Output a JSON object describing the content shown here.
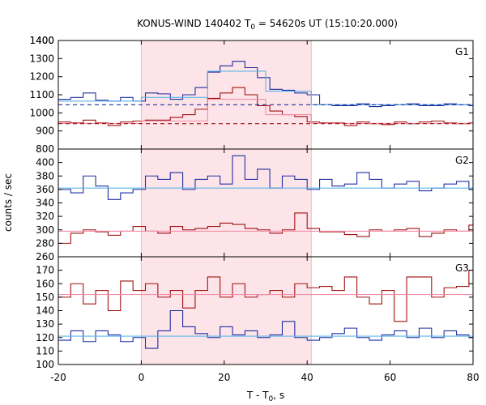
{
  "chart_data": {
    "type": "line",
    "title": "KONUS-WIND 140402 T",
    "title_sub": "0",
    "title_rest": " = 54620s UT (15:10:20.000)",
    "xlabel": "T - T",
    "xlabel_sub": "0",
    "xlabel_rest": ", s",
    "ylabel": "counts / sec",
    "xlim": [
      -20,
      80
    ],
    "x_ticks": [
      -20,
      0,
      20,
      40,
      60,
      80
    ],
    "highlight_interval": [
      0,
      41
    ],
    "colors": {
      "blue": "#1f2fa0",
      "red": "#a01010",
      "cyan_fit": "#5ab4e6",
      "pink_fit": "#f28ca8",
      "highlight": "#fde4e8"
    },
    "panels": [
      {
        "label": "G1",
        "ylim": [
          800,
          1400
        ],
        "yticks": [
          800,
          900,
          1000,
          1100,
          1200,
          1300,
          1400
        ],
        "series": [
          {
            "color": "blue",
            "x": [
              -20,
              -17,
              -14,
              -11,
              -8,
              -5,
              -2,
              1,
              4,
              7,
              10,
              13,
              16,
              19,
              22,
              25,
              28,
              31,
              34,
              37,
              40,
              43,
              46,
              49,
              52,
              55,
              58,
              61,
              64,
              67,
              70,
              73,
              76,
              79,
              80
            ],
            "y": [
              1075,
              1085,
              1110,
              1070,
              1065,
              1085,
              1065,
              1110,
              1105,
              1075,
              1100,
              1140,
              1225,
              1260,
              1285,
              1250,
              1195,
              1130,
              1125,
              1110,
              1100,
              1045,
              1040,
              1040,
              1050,
              1035,
              1040,
              1045,
              1050,
              1040,
              1040,
              1050,
              1045,
              1040,
              1040
            ]
          },
          {
            "color": "red",
            "x": [
              -20,
              -17,
              -14,
              -11,
              -8,
              -5,
              -2,
              1,
              4,
              7,
              10,
              13,
              16,
              19,
              22,
              25,
              28,
              31,
              34,
              37,
              40,
              43,
              46,
              49,
              52,
              55,
              58,
              61,
              64,
              67,
              70,
              73,
              76,
              79,
              80
            ],
            "y": [
              950,
              945,
              960,
              945,
              930,
              950,
              955,
              960,
              960,
              975,
              990,
              1020,
              1080,
              1110,
              1140,
              1100,
              1040,
              1010,
              990,
              980,
              950,
              945,
              945,
              930,
              950,
              940,
              935,
              950,
              940,
              950,
              955,
              945,
              940,
              945,
              945
            ]
          },
          {
            "color": "cyan_fit",
            "x": [
              -20,
              0,
              0,
              16,
              16,
              30,
              30,
              41,
              41,
              80
            ],
            "y": [
              1065,
              1065,
              1085,
              1085,
              1230,
              1230,
              1120,
              1120,
              1045,
              1045
            ]
          },
          {
            "color": "pink_fit",
            "x": [
              -20,
              0,
              0,
              16,
              16,
              30,
              30,
              41,
              41,
              80
            ],
            "y": [
              942,
              942,
              955,
              955,
              1075,
              1075,
              990,
              990,
              942,
              942
            ]
          },
          {
            "color": "blue",
            "dashed": true,
            "x": [
              -20,
              80
            ],
            "y": [
              1045,
              1045
            ]
          },
          {
            "color": "red",
            "dashed": true,
            "x": [
              -20,
              80
            ],
            "y": [
              940,
              940
            ]
          }
        ]
      },
      {
        "label": "G2",
        "ylim": [
          260,
          420
        ],
        "yticks": [
          260,
          280,
          300,
          320,
          340,
          360,
          380,
          400
        ],
        "series": [
          {
            "color": "blue",
            "x": [
              -20,
              -17,
              -14,
              -11,
              -8,
              -5,
              -2,
              1,
              4,
              7,
              10,
              13,
              16,
              19,
              22,
              25,
              28,
              31,
              34,
              37,
              40,
              43,
              46,
              49,
              52,
              55,
              58,
              61,
              64,
              67,
              70,
              73,
              76,
              79,
              80
            ],
            "y": [
              360,
              355,
              380,
              365,
              345,
              355,
              360,
              380,
              375,
              385,
              360,
              375,
              380,
              368,
              410,
              375,
              390,
              362,
              380,
              375,
              360,
              375,
              365,
              368,
              385,
              375,
              362,
              368,
              372,
              358,
              362,
              368,
              372,
              360,
              360
            ]
          },
          {
            "color": "red",
            "x": [
              -20,
              -17,
              -14,
              -11,
              -8,
              -5,
              -2,
              1,
              4,
              7,
              10,
              13,
              16,
              19,
              22,
              25,
              28,
              31,
              34,
              37,
              40,
              43,
              46,
              49,
              52,
              55,
              58,
              61,
              64,
              67,
              70,
              73,
              76,
              79,
              80
            ],
            "y": [
              280,
              295,
              300,
              297,
              292,
              298,
              305,
              298,
              295,
              305,
              300,
              302,
              305,
              310,
              308,
              302,
              300,
              295,
              300,
              325,
              302,
              297,
              297,
              293,
              290,
              300,
              298,
              300,
              302,
              290,
              295,
              300,
              298,
              307,
              307
            ]
          },
          {
            "color": "cyan_fit",
            "x": [
              -20,
              80
            ],
            "y": [
              362,
              362
            ]
          },
          {
            "color": "pink_fit",
            "x": [
              -20,
              80
            ],
            "y": [
              298,
              298
            ]
          }
        ]
      },
      {
        "label": "G3",
        "ylim": [
          100,
          180
        ],
        "yticks": [
          100,
          110,
          120,
          130,
          140,
          150,
          160,
          170
        ],
        "series": [
          {
            "color": "blue",
            "x": [
              -20,
              -17,
              -14,
              -11,
              -8,
              -5,
              -2,
              1,
              4,
              7,
              10,
              13,
              16,
              19,
              22,
              25,
              28,
              31,
              34,
              37,
              40,
              43,
              46,
              49,
              52,
              55,
              58,
              61,
              64,
              67,
              70,
              73,
              76,
              79,
              80
            ],
            "y": [
              118,
              125,
              117,
              125,
              122,
              117,
              120,
              112,
              125,
              140,
              128,
              123,
              120,
              128,
              122,
              125,
              120,
              122,
              132,
              120,
              118,
              120,
              123,
              127,
              120,
              118,
              122,
              125,
              120,
              127,
              120,
              125,
              122,
              120,
              120
            ]
          },
          {
            "color": "red",
            "x": [
              -20,
              -17,
              -14,
              -11,
              -8,
              -5,
              -2,
              1,
              4,
              7,
              10,
              13,
              16,
              19,
              22,
              25,
              28,
              31,
              34,
              37,
              40,
              43,
              46,
              49,
              52,
              55,
              58,
              61,
              64,
              67,
              70,
              73,
              76,
              79,
              80
            ],
            "y": [
              150,
              160,
              145,
              155,
              140,
              162,
              155,
              160,
              150,
              155,
              142,
              155,
              165,
              150,
              160,
              150,
              152,
              155,
              150,
              160,
              157,
              158,
              155,
              165,
              150,
              145,
              155,
              132,
              165,
              165,
              150,
              157,
              158,
              170,
              170
            ]
          },
          {
            "color": "cyan_fit",
            "x": [
              -20,
              80
            ],
            "y": [
              121,
              121
            ]
          },
          {
            "color": "pink_fit",
            "x": [
              -20,
              80
            ],
            "y": [
              152,
              152
            ]
          }
        ]
      }
    ]
  }
}
